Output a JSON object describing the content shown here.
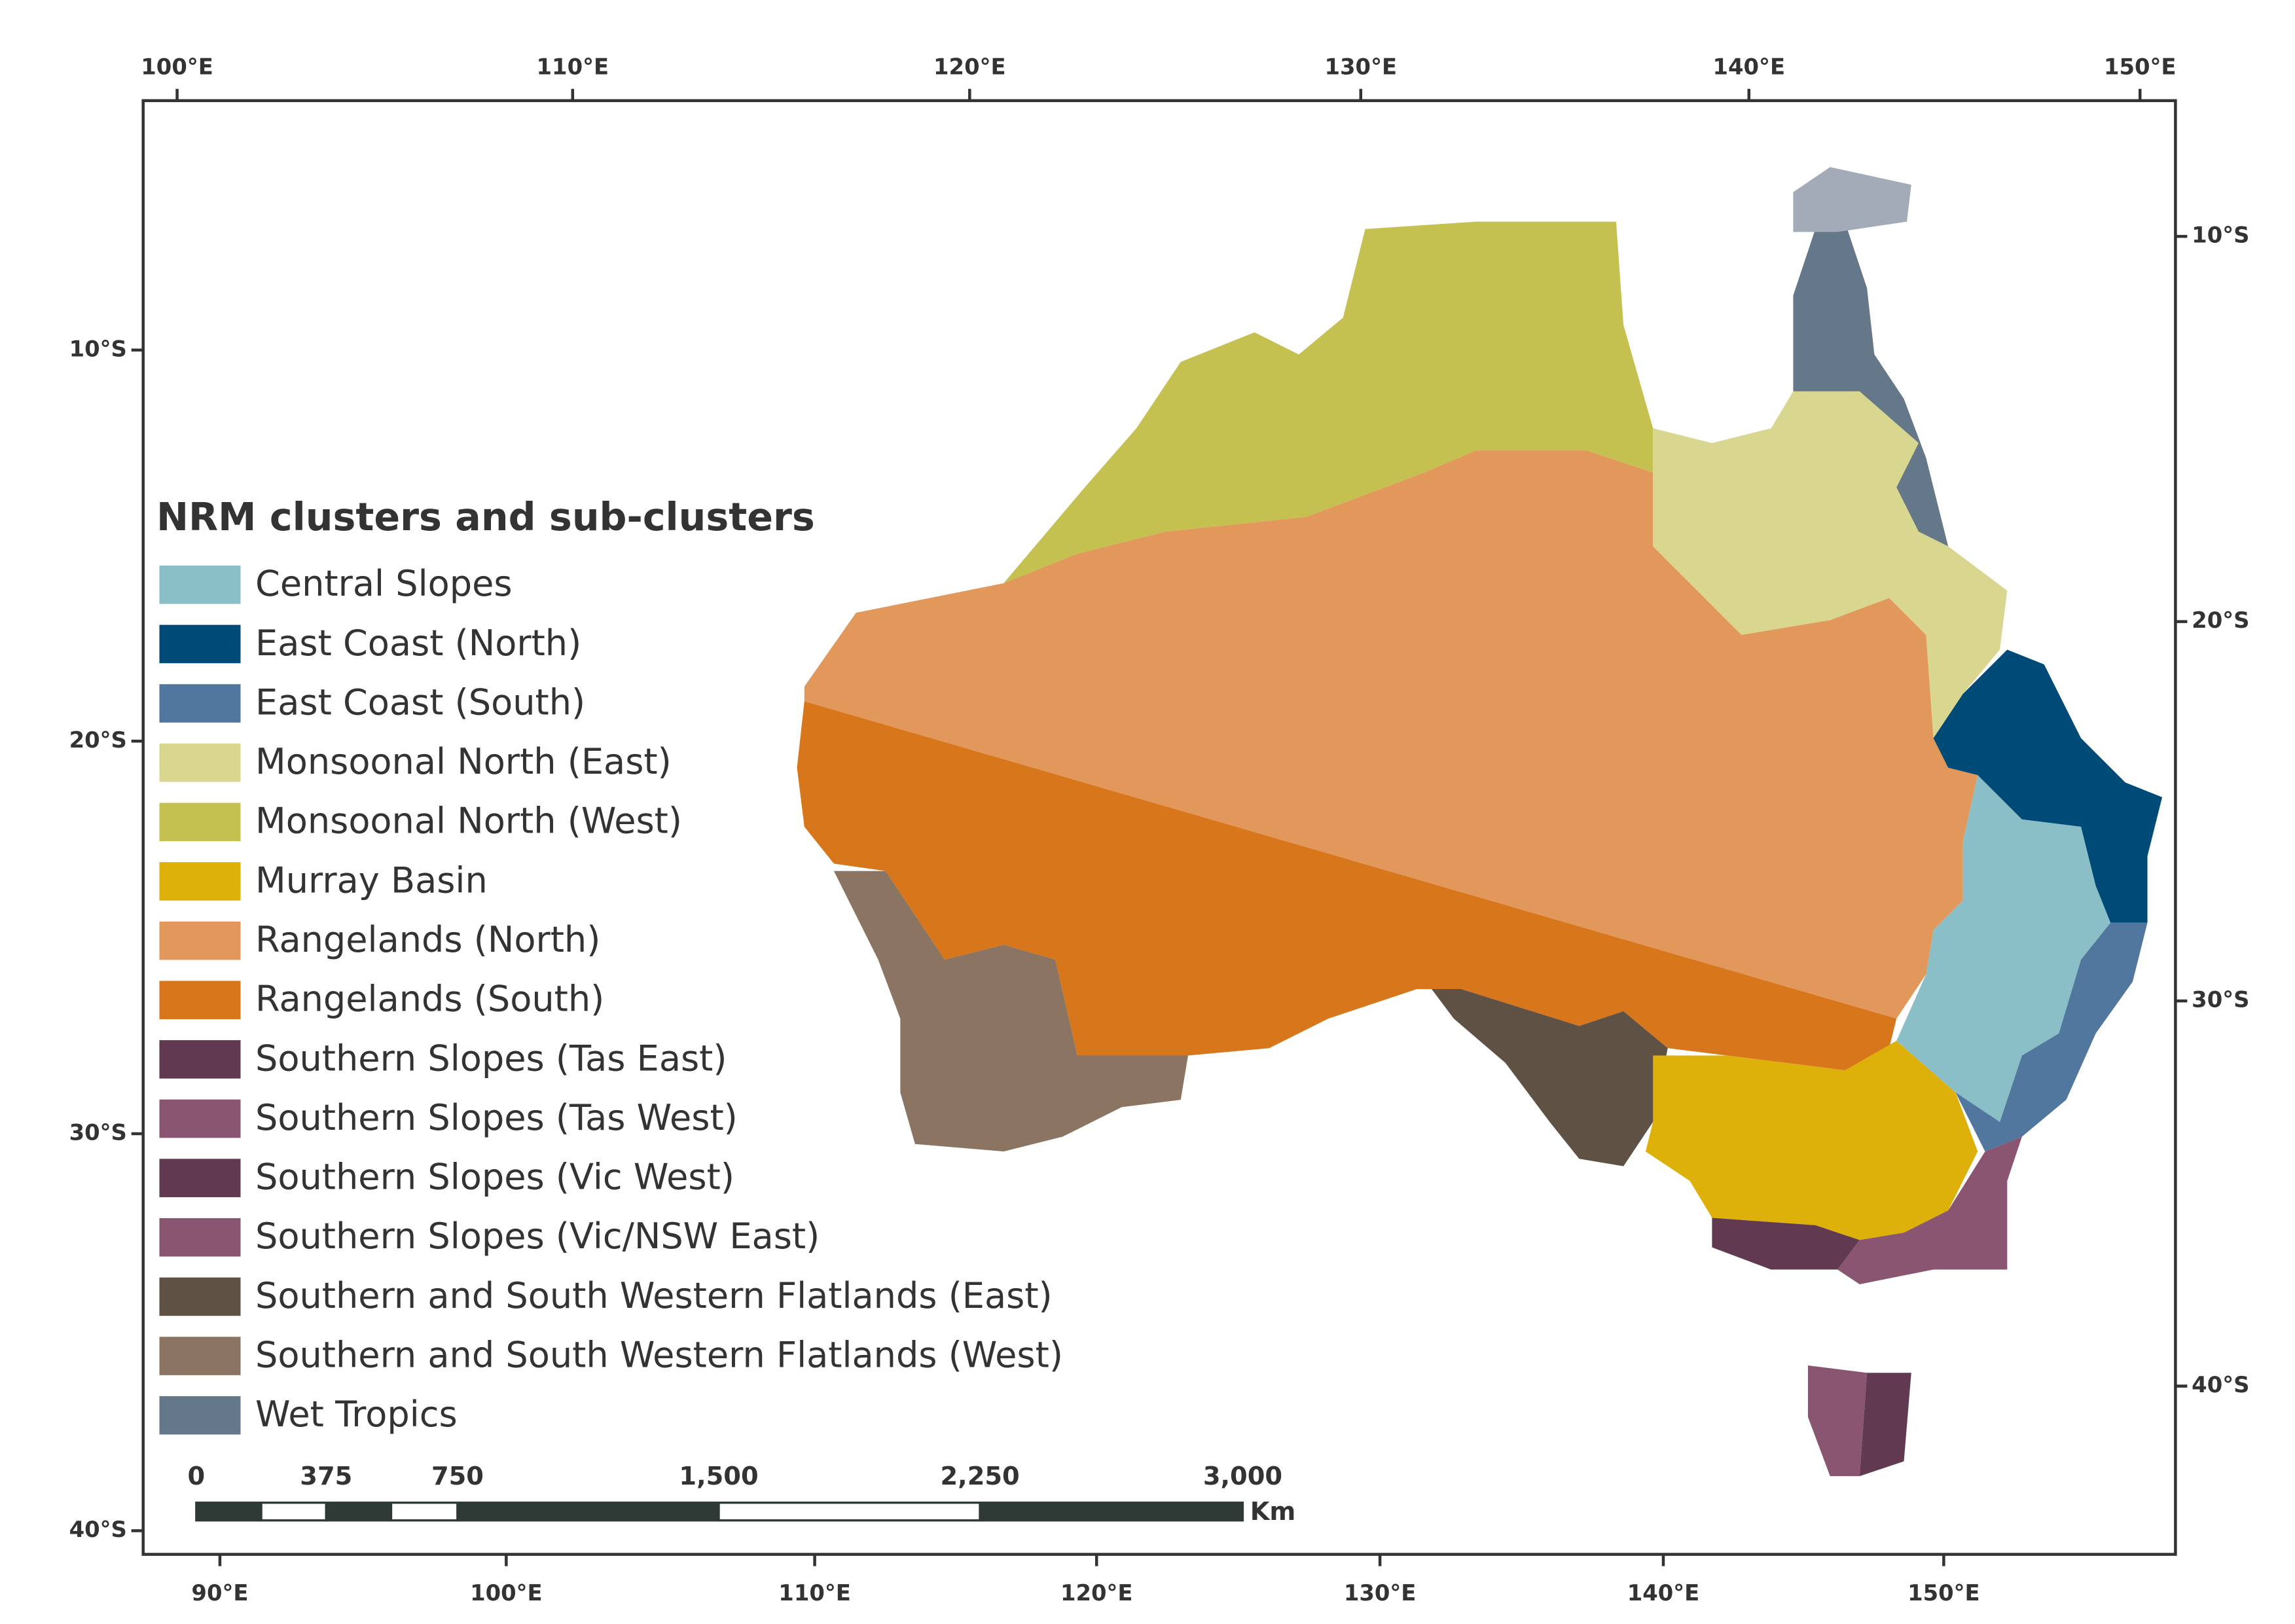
{
  "legend": {
    "title": "NRM clusters and sub-clusters",
    "items": [
      {
        "label": "Central Slopes",
        "color": "#8bbfc8"
      },
      {
        "label": "East Coast (North)",
        "color": "#004a78"
      },
      {
        "label": "East Coast (South)",
        "color": "#52779e"
      },
      {
        "label": "Monsoonal North (East)",
        "color": "#d9d68f"
      },
      {
        "label": "Monsoonal North (West)",
        "color": "#c5c150"
      },
      {
        "label": "Murray Basin",
        "color": "#deb00a"
      },
      {
        "label": "Rangelands (North)",
        "color": "#e2985a"
      },
      {
        "label": "Rangelands (South)",
        "color": "#d8761c"
      },
      {
        "label": "Southern Slopes (Tas East)",
        "color": "#613a52"
      },
      {
        "label": "Southern Slopes (Tas West)",
        "color": "#8a5570"
      },
      {
        "label": "Southern Slopes (Vic West)",
        "color": "#613a52"
      },
      {
        "label": "Southern Slopes (Vic/NSW East)",
        "color": "#8a5570"
      },
      {
        "label": "Southern and South Western Flatlands (East)",
        "color": "#5f5244"
      },
      {
        "label": "Southern and South Western Flatlands (West)",
        "color": "#8b7461"
      },
      {
        "label": "Wet Tropics",
        "color": "#64788a"
      }
    ]
  },
  "axes": {
    "top": [
      "100°E",
      "110°E",
      "120°E",
      "130°E",
      "140°E",
      "150°E"
    ],
    "bottom": [
      "90°E",
      "100°E",
      "110°E",
      "120°E",
      "130°E",
      "140°E",
      "150°E"
    ],
    "left": [
      "10°S",
      "20°S",
      "30°S",
      "40°S"
    ],
    "right": [
      "10°S",
      "20°S",
      "30°S",
      "40°S"
    ]
  },
  "scale_bar": {
    "labels": [
      "0",
      "375",
      "750",
      "1,500",
      "2,250",
      "3,000"
    ],
    "unit": "Km"
  }
}
